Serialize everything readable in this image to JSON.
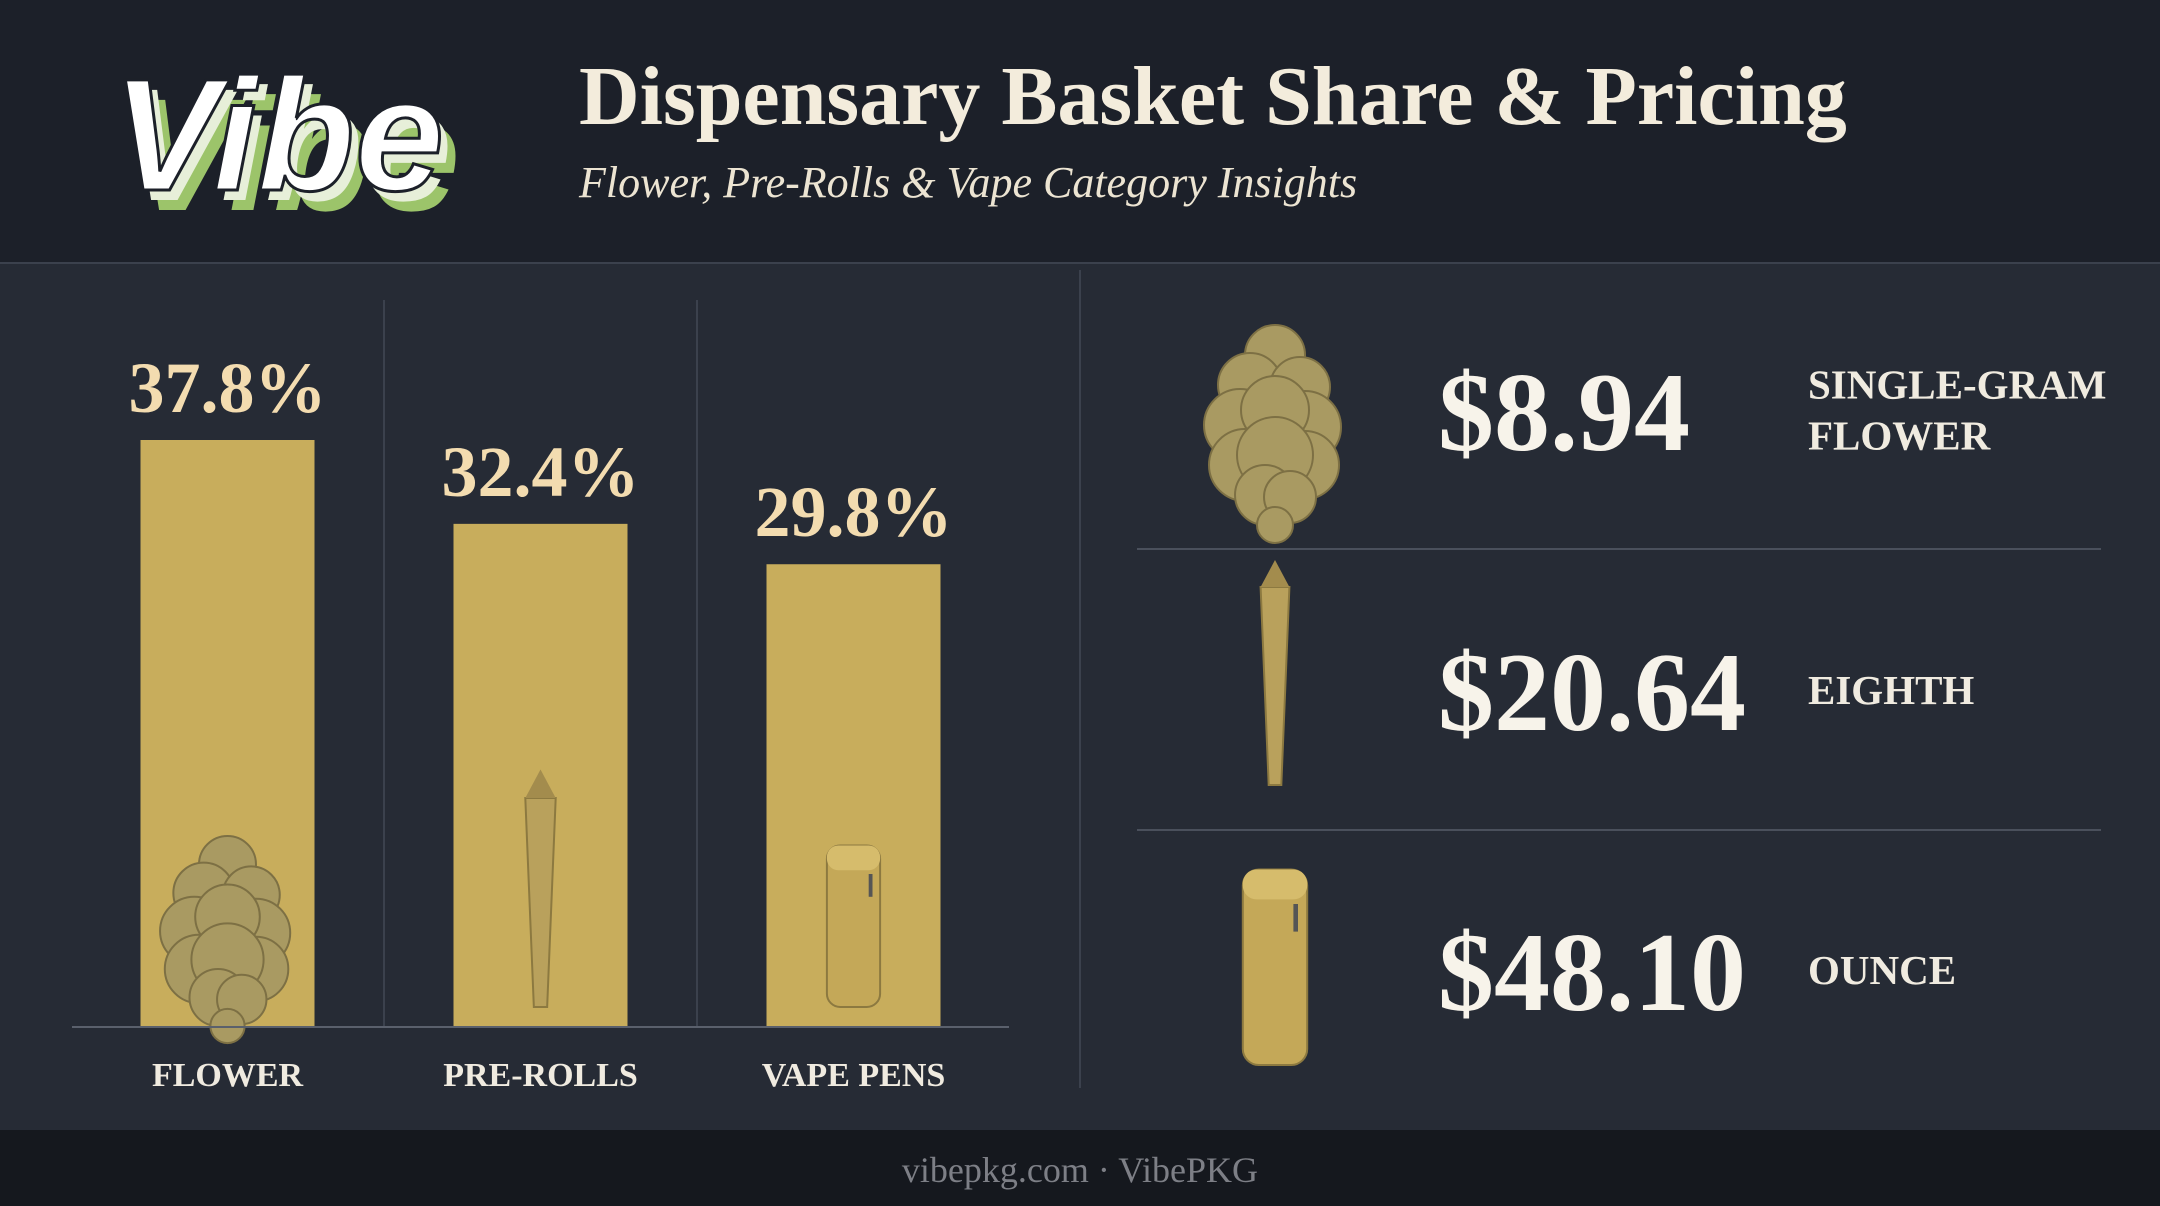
{
  "header": {
    "logo": "Vibe",
    "title": "Dispensary Basket Share & Pricing",
    "subtitle": "Flower, Pre-Rolls & Vape Category Insights"
  },
  "chart_data": {
    "type": "bar",
    "categories": [
      "FLOWER",
      "PRE-ROLLS",
      "VAPE PENS"
    ],
    "values": [
      37.8,
      32.4,
      29.8
    ],
    "value_labels": [
      "37.8%",
      "32.4%",
      "29.8%"
    ],
    "color": "#c8ad5c"
  },
  "prices": [
    {
      "price": "$8.94",
      "label_lines": [
        "SINGLE-GRAM",
        "FLOWER"
      ]
    },
    {
      "price": "$20.64",
      "label_lines": [
        "EIGHTH"
      ]
    },
    {
      "price": "$48.10",
      "label_lines": [
        "OUNCE"
      ]
    }
  ],
  "footer": "vibepkg.com · VibePKG"
}
